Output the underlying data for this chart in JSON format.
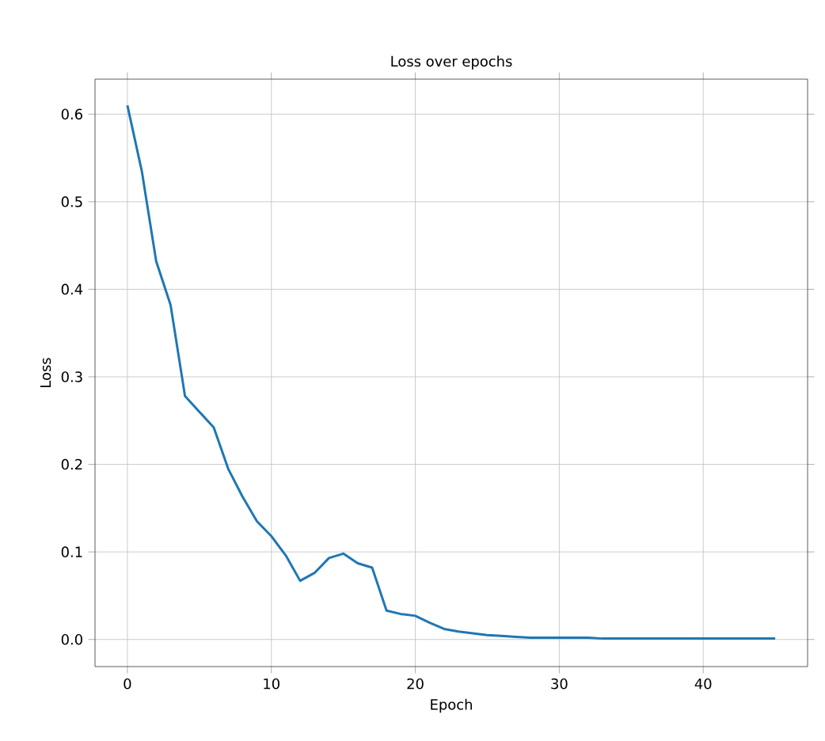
{
  "chart_data": {
    "type": "line",
    "title": "Loss over epochs",
    "xlabel": "Epoch",
    "ylabel": "Loss",
    "x": [
      0,
      1,
      2,
      3,
      4,
      5,
      6,
      7,
      8,
      9,
      10,
      11,
      12,
      13,
      14,
      15,
      16,
      17,
      18,
      19,
      20,
      21,
      22,
      23,
      24,
      25,
      26,
      27,
      28,
      29,
      30,
      31,
      32,
      33,
      34,
      35,
      36,
      37,
      38,
      39,
      40,
      41,
      42,
      43,
      44,
      45
    ],
    "series": [
      {
        "color": "#1f77b4",
        "values": [
          0.61,
          0.535,
          0.432,
          0.382,
          0.278,
          0.26,
          0.242,
          0.195,
          0.163,
          0.135,
          0.118,
          0.096,
          0.067,
          0.076,
          0.093,
          0.098,
          0.087,
          0.082,
          0.033,
          0.029,
          0.027,
          0.019,
          0.012,
          0.009,
          0.007,
          0.005,
          0.004,
          0.003,
          0.002,
          0.002,
          0.002,
          0.002,
          0.002,
          0.001,
          0.001,
          0.001,
          0.001,
          0.001,
          0.001,
          0.001,
          0.001,
          0.001,
          0.001,
          0.001,
          0.001,
          0.001
        ]
      }
    ],
    "xlim": [
      -2.25,
      47.25
    ],
    "ylim": [
      -0.031,
      0.64
    ],
    "xticks": [
      0,
      10,
      20,
      30,
      40
    ],
    "yticks": [
      {
        "value": 0,
        "label": "0.0"
      },
      0.1,
      0.2,
      0.3,
      0.4,
      0.5,
      0.6
    ],
    "grid": true,
    "marker": "none",
    "line_style": "solid"
  }
}
